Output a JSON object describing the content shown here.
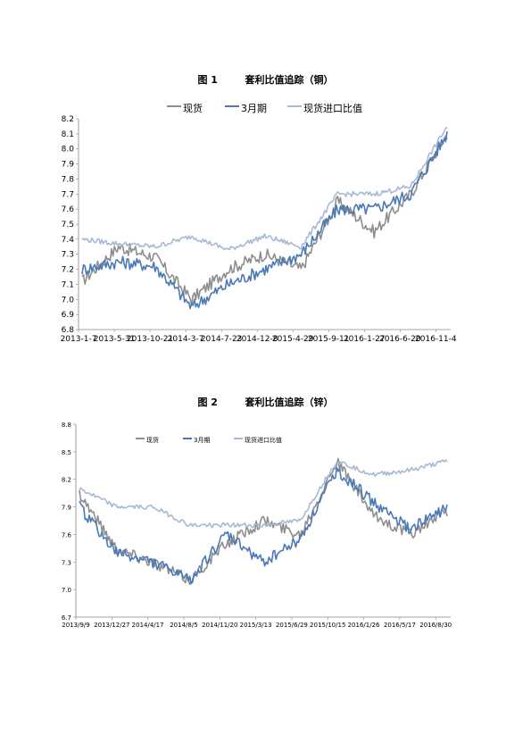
{
  "figures": [
    {
      "id": "chart1",
      "title": "图 1        套利比值追踪（铜）",
      "legend_size": 11,
      "tick_size": 9,
      "legend_position": "top",
      "colors": {
        "spot": "#8e8e8e",
        "march": "#4a79b8",
        "import": "#a8b8d6"
      },
      "chart_data": {
        "type": "line",
        "title": "图 1        套利比值追踪（铜）",
        "x": [
          "2013-1-7",
          "2013-5-31",
          "2013-10-21",
          "2014-3-7",
          "2014-7-23",
          "2014-12-8",
          "2015-4-29",
          "2015-9-11",
          "2016-1-27",
          "2016-6-20",
          "2016-11-4"
        ],
        "x_tick_labels": [
          "2013-1-7",
          "2013-5-31",
          "2013-10-21",
          "2014-3-7",
          "2014-7-23",
          "2014-12-8",
          "2015-4-29",
          "2015-9-11",
          "2016-1-27",
          "2016-6-20",
          "2016-11-4"
        ],
        "y_tick_labels": [
          "6.8",
          "6.9",
          "7.0",
          "7.1",
          "7.2",
          "7.3",
          "7.4",
          "7.5",
          "7.6",
          "7.7",
          "7.8",
          "7.9",
          "8.0",
          "8.1",
          "8.2"
        ],
        "ylim": [
          6.8,
          8.2
        ],
        "grid": false,
        "series": [
          {
            "name": "现货",
            "key": "spot",
            "values": [
              7.12,
              7.35,
              7.28,
              7.0,
              7.2,
              7.3,
              7.2,
              7.65,
              7.45,
              7.7,
              8.1
            ]
          },
          {
            "name": "3月期",
            "key": "march",
            "values": [
              7.2,
              7.25,
              7.22,
              6.95,
              7.1,
              7.2,
              7.3,
              7.6,
              7.6,
              7.7,
              8.1
            ]
          },
          {
            "name": "现货进口比值",
            "key": "import",
            "values": [
              7.4,
              7.37,
              7.35,
              7.42,
              7.33,
              7.42,
              7.35,
              7.7,
              7.7,
              7.75,
              8.15
            ]
          }
        ]
      }
    },
    {
      "id": "chart2",
      "title": "图 2        套利比值追踪（锌）",
      "legend_size": 7,
      "tick_size": 7,
      "legend_position": "top-left",
      "colors": {
        "spot": "#8e8e8e",
        "march": "#4a79b8",
        "import": "#a8b8d6"
      },
      "chart_data": {
        "type": "line",
        "title": "图 2        套利比值追踪（锌）",
        "x": [
          "2013/9/9",
          "2013/12/27",
          "2014/4/17",
          "2014/8/5",
          "2014/11/20",
          "2015/3/13",
          "2015/6/29",
          "2015/10/15",
          "2016/1/26",
          "2016/5/17",
          "2016/8/30"
        ],
        "x_tick_labels": [
          "2013/9/9",
          "2013/12/27",
          "2014/4/17",
          "2014/8/5",
          "2014/11/20",
          "2015/3/13",
          "2015/6/29",
          "2015/10/15",
          "2016/1/26",
          "2016/5/17",
          "2016/8/30"
        ],
        "y_tick_labels": [
          "6.7",
          "7.0",
          "7.3",
          "7.6",
          "7.9",
          "8.2",
          "8.5",
          "8.8"
        ],
        "ylim": [
          6.7,
          8.8
        ],
        "grid": false,
        "series": [
          {
            "name": "现货",
            "key": "spot",
            "values": [
              8.05,
              7.45,
              7.3,
              7.1,
              7.5,
              7.75,
              7.6,
              8.4,
              7.8,
              7.6,
              7.85
            ]
          },
          {
            "name": "3月期",
            "key": "march",
            "values": [
              7.9,
              7.4,
              7.3,
              7.1,
              7.6,
              7.3,
              7.55,
              8.3,
              7.95,
              7.65,
              7.9
            ]
          },
          {
            "name": "现货进口比值",
            "key": "import",
            "values": [
              8.1,
              7.9,
              7.9,
              7.7,
              7.7,
              7.7,
              7.75,
              8.4,
              8.25,
              8.3,
              8.4
            ]
          }
        ]
      }
    }
  ]
}
